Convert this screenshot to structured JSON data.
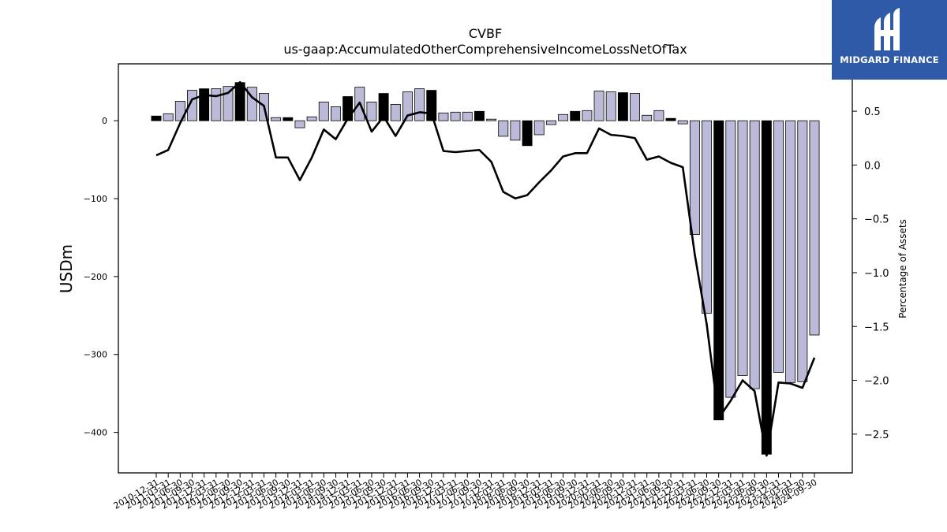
{
  "chart_data": {
    "type": "bar",
    "title": "CVBF",
    "subtitle": "us-gaap:AccumulatedOtherComprehensiveIncomeLossNetOfTax",
    "ylabel": "USDm",
    "y2label": "Percentage of Assets",
    "ylim": [
      -452,
      73
    ],
    "y2lim": [
      -2.86,
      0.94
    ],
    "yticks": [
      0,
      -100,
      -200,
      -300,
      -400
    ],
    "y2ticks": [
      0.5,
      0.0,
      -0.5,
      -1.0,
      -1.5,
      -2.0,
      -2.5
    ],
    "y2tick_labels": [
      "0.5",
      "0.0",
      "−0.5",
      "−1.0",
      "−1.5",
      "−2.0",
      "−2.5"
    ],
    "ytick_labels": [
      "0",
      "−100",
      "−200",
      "−300",
      "−400"
    ],
    "categories": [
      "2010-12-31",
      "2011-03-31",
      "2011-06-30",
      "2011-09-30",
      "2011-12-31",
      "2012-03-31",
      "2012-06-30",
      "2012-09-30",
      "2012-12-31",
      "2013-03-31",
      "2013-06-30",
      "2013-09-30",
      "2013-12-31",
      "2014-03-31",
      "2014-06-30",
      "2014-09-30",
      "2014-12-31",
      "2015-03-31",
      "2015-06-30",
      "2015-09-30",
      "2015-12-31",
      "2016-03-31",
      "2016-06-30",
      "2016-09-30",
      "2016-12-31",
      "2017-03-31",
      "2017-06-30",
      "2017-09-30",
      "2017-12-31",
      "2018-03-31",
      "2018-06-30",
      "2018-09-30",
      "2018-12-31",
      "2019-03-31",
      "2019-06-30",
      "2019-09-30",
      "2019-12-31",
      "2020-03-31",
      "2020-06-30",
      "2020-09-30",
      "2020-12-31",
      "2021-03-31",
      "2021-06-30",
      "2021-09-30",
      "2021-12-31",
      "2022-03-31",
      "2022-06-30",
      "2022-09-30",
      "2022-12-31",
      "2023-03-31",
      "2023-06-30",
      "2023-09-30",
      "2023-12-31",
      "2024-03-31",
      "2024-06-30",
      "2024-09-30"
    ],
    "series": [
      {
        "values": [
          6,
          9,
          25,
          39,
          41,
          41,
          44,
          49,
          43,
          35,
          4,
          4,
          -9,
          5,
          24,
          18,
          31,
          43,
          24,
          35,
          21,
          37,
          41,
          39,
          10,
          11,
          11,
          12,
          2,
          -20,
          -25,
          -32,
          -18,
          -5,
          8,
          12,
          13,
          38,
          37,
          36,
          35,
          7,
          13,
          3,
          -4,
          -146,
          -247,
          -384,
          -355,
          -327,
          -344,
          -428,
          -323,
          -336,
          -335,
          -275
        ]
      },
      {
        "axis": "right",
        "values": [
          0.09,
          0.14,
          0.39,
          0.61,
          0.65,
          0.64,
          0.67,
          0.77,
          0.63,
          0.55,
          0.07,
          0.07,
          -0.14,
          0.07,
          0.33,
          0.24,
          0.43,
          0.58,
          0.31,
          0.45,
          0.27,
          0.46,
          0.49,
          0.48,
          0.13,
          0.12,
          0.13,
          0.14,
          0.03,
          -0.25,
          -0.31,
          -0.28,
          -0.16,
          -0.05,
          0.08,
          0.11,
          0.11,
          0.34,
          0.28,
          0.27,
          0.25,
          0.05,
          0.08,
          0.02,
          -0.02,
          -0.83,
          -1.48,
          -2.35,
          -2.19,
          -2.0,
          -2.1,
          -2.7,
          -2.02,
          -2.03,
          -2.07,
          -1.79
        ]
      }
    ],
    "bar_fill": "#bcbad9",
    "bar_highlight_fill": "#000000",
    "highlight_categories": [
      "2010-12-31",
      "2011-12-31",
      "2012-09-30",
      "2013-09-30",
      "2014-12-31",
      "2015-09-30",
      "2016-09-30",
      "2017-09-30",
      "2018-09-30",
      "2019-09-30",
      "2020-09-30",
      "2021-09-30",
      "2022-09-30",
      "2023-09-30"
    ],
    "line_color": "#000000",
    "grid": false
  },
  "logo": {
    "text": "MIDGARD FINANCE",
    "background": "#2f5aa8"
  }
}
